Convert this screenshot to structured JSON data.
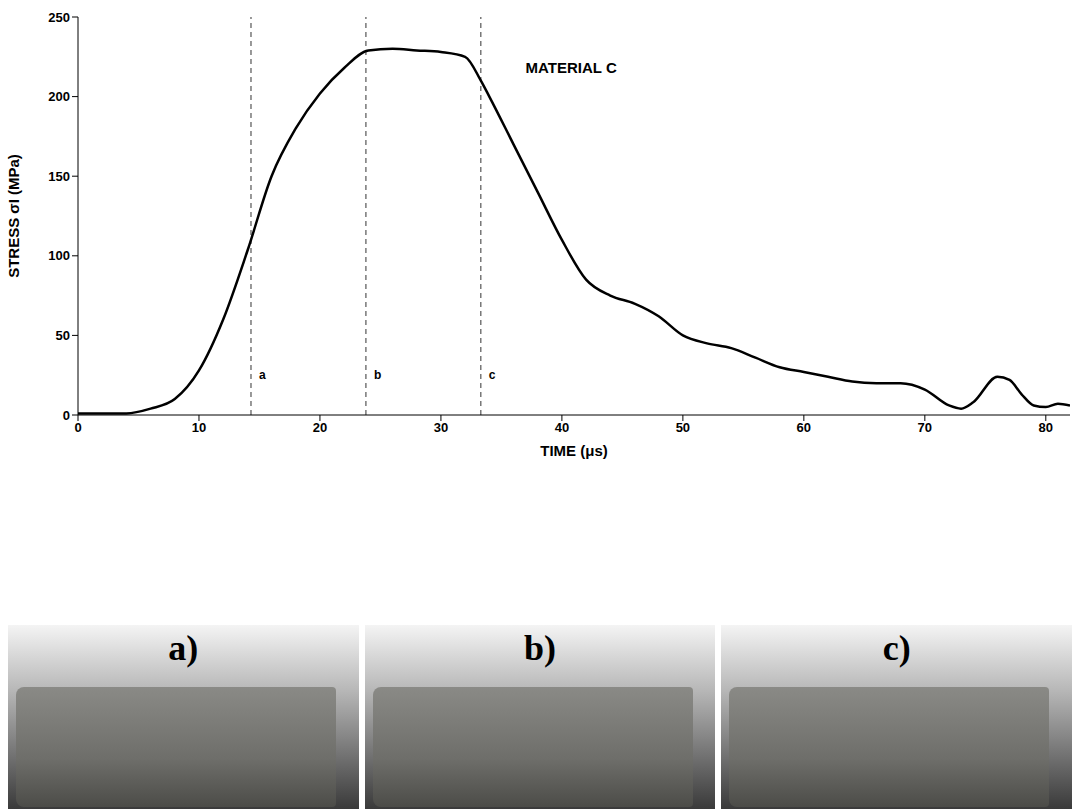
{
  "chart_data": {
    "type": "line",
    "x_label": "TIME (μs)",
    "y_label": "STRESS σI (MPa)",
    "xlim": [
      0,
      82
    ],
    "xticks": [
      0,
      10,
      20,
      30,
      40,
      50,
      60,
      70,
      80
    ],
    "ylim": [
      0,
      250
    ],
    "yticks": [
      0,
      50,
      100,
      150,
      200,
      250
    ],
    "grid": false,
    "series": [
      {
        "name": "MATERIAL C",
        "color": "#000000",
        "line_style": "solid",
        "x": [
          0,
          2,
          4,
          6,
          8,
          10,
          12,
          14,
          16,
          18,
          20,
          22,
          24,
          26,
          28,
          30,
          32,
          33.3,
          34,
          36,
          38,
          40,
          42,
          44,
          46,
          48,
          50,
          52,
          54,
          56,
          58,
          60,
          62,
          64,
          66,
          68,
          70,
          72,
          73,
          74,
          76,
          77,
          78,
          79,
          80,
          81,
          82
        ],
        "values": [
          1,
          1,
          1,
          4,
          10,
          28,
          60,
          103,
          150,
          180,
          202,
          218,
          229,
          230,
          229,
          228,
          225,
          210,
          200,
          170,
          140,
          110,
          85,
          75,
          70,
          62,
          50,
          45,
          42,
          36,
          30,
          27,
          24,
          21,
          20,
          20,
          16,
          6,
          4,
          8,
          24,
          22,
          13,
          6,
          5,
          7,
          6
        ]
      }
    ],
    "markers": [
      {
        "label": "a",
        "x": 14.3
      },
      {
        "label": "b",
        "x": 23.8
      },
      {
        "label": "c",
        "x": 33.3
      }
    ],
    "annotations": [
      {
        "text": "MATERIAL C",
        "x": 37,
        "y": 218
      }
    ]
  },
  "photos": {
    "labels": [
      "a)",
      "b)",
      "c)"
    ]
  }
}
